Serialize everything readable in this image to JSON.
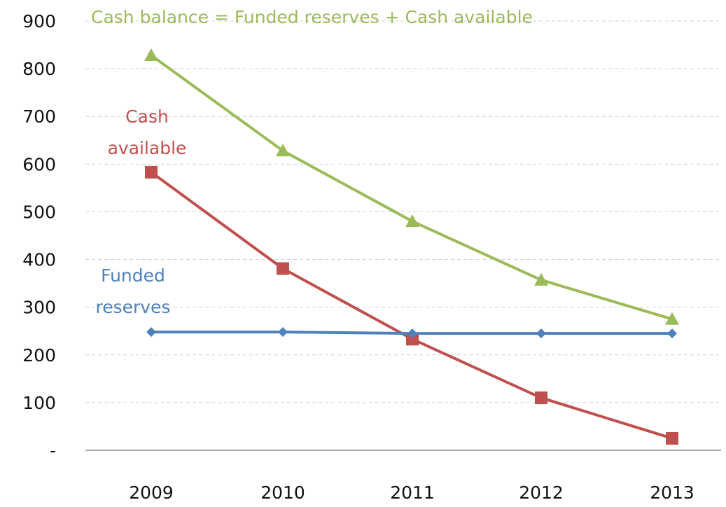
{
  "chart_data": {
    "type": "line",
    "categories": [
      "2009",
      "2010",
      "2011",
      "2012",
      "2013"
    ],
    "ylim": [
      0,
      900
    ],
    "y_ticks": [
      0,
      100,
      200,
      300,
      400,
      500,
      600,
      700,
      800,
      900
    ],
    "y_tick_labels": [
      "-",
      "100",
      "200",
      "300",
      "400",
      "500",
      "600",
      "700",
      "800",
      "900"
    ],
    "grid": true,
    "legend": "none",
    "series": [
      {
        "key": "cash_balance",
        "values": [
          828,
          628,
          480,
          357,
          275
        ],
        "color": "#9bbb59",
        "marker": "triangle",
        "label_lines": [
          "Cash balance = Funded reserves + Cash available"
        ]
      },
      {
        "key": "cash_available",
        "values": [
          583,
          381,
          233,
          110,
          25
        ],
        "color": "#c0504d",
        "marker": "square",
        "label_lines": [
          "Cash",
          "available"
        ]
      },
      {
        "key": "funded_reserves",
        "values": [
          248,
          248,
          245,
          245,
          245
        ],
        "color": "#4f81bd",
        "marker": "diamond",
        "label_lines": [
          "Funded",
          "reserves"
        ]
      }
    ]
  }
}
